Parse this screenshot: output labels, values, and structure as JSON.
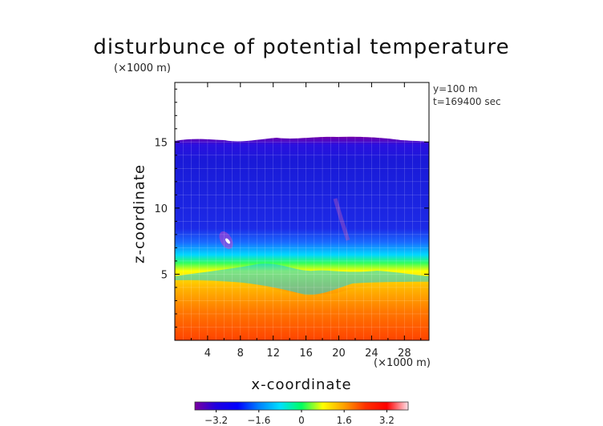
{
  "chart_data": {
    "type": "heatmap",
    "title": "disturbunce of potential temperature",
    "axis_unit_label_top": "(×1000 m)",
    "xlabel": "x-coordinate",
    "ylabel": "z-coordinate",
    "x_unit_label": "(×1000 m)",
    "annotations": [
      "y=100 m",
      "t=169400 sec"
    ],
    "x_range": [
      0,
      31
    ],
    "y_range": [
      0,
      19.5
    ],
    "x_ticks": [
      4,
      8,
      12,
      16,
      20,
      24,
      28
    ],
    "y_ticks": [
      5,
      10,
      15
    ],
    "colorbar": {
      "range": [
        -4,
        4
      ],
      "ticks": [
        -3.2,
        -1.6,
        0,
        1.6,
        3.2
      ],
      "tick_labels": [
        "−3.2",
        "−1.6",
        "0",
        "1.6",
        "3.2"
      ],
      "colormap": [
        "#7a00a0",
        "#1f00e0",
        "#0000ff",
        "#0080ff",
        "#00e0ff",
        "#00ff60",
        "#ffff00",
        "#ffa000",
        "#ff3000",
        "#ff0000",
        "#ffe0e8"
      ]
    },
    "description_regions": {
      "cloud_top_km": 15.7,
      "interface_km": 5
    }
  }
}
